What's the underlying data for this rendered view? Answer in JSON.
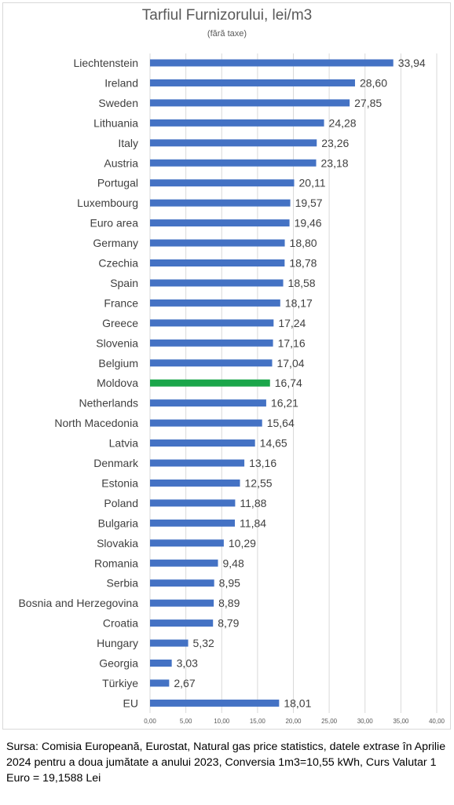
{
  "chart_data": {
    "type": "bar",
    "orientation": "horizontal",
    "title": "Tarfiul Furnizorului, lei/m3",
    "subtitle": "(fără taxe)",
    "categories": [
      "Liechtenstein",
      "Ireland",
      "Sweden",
      "Lithuania",
      "Italy",
      "Austria",
      "Portugal",
      "Luxembourg",
      "Euro area",
      "Germany",
      "Czechia",
      "Spain",
      "France",
      "Greece",
      "Slovenia",
      "Belgium",
      "Moldova",
      "Netherlands",
      "North Macedonia",
      "Latvia",
      "Denmark",
      "Estonia",
      "Poland",
      "Bulgaria",
      "Slovakia",
      "Romania",
      "Serbia",
      "Bosnia and Herzegovina",
      "Croatia",
      "Hungary",
      "Georgia",
      "Türkiye",
      "EU"
    ],
    "values": [
      33.94,
      28.6,
      27.85,
      24.28,
      23.26,
      23.18,
      20.11,
      19.57,
      19.46,
      18.8,
      18.78,
      18.58,
      18.17,
      17.24,
      17.16,
      17.04,
      16.74,
      16.21,
      15.64,
      14.65,
      13.16,
      12.55,
      11.88,
      11.84,
      10.29,
      9.48,
      8.95,
      8.89,
      8.79,
      5.32,
      3.03,
      2.67,
      18.01
    ],
    "value_labels": [
      "33,94",
      "28,60",
      "27,85",
      "24,28",
      "23,26",
      "23,18",
      "20,11",
      "19,57",
      "19,46",
      "18,80",
      "18,78",
      "18,58",
      "18,17",
      "17,24",
      "17,16",
      "17,04",
      "16,74",
      "16,21",
      "15,64",
      "14,65",
      "13,16",
      "12,55",
      "11,88",
      "11,84",
      "10,29",
      "9,48",
      "8,95",
      "8,89",
      "8,79",
      "5,32",
      "3,03",
      "2,67",
      "18,01"
    ],
    "highlight_category": "Moldova",
    "xlim": [
      0,
      40
    ],
    "x_ticks": [
      "0,00",
      "5,00",
      "10,00",
      "15,00",
      "20,00",
      "25,00",
      "30,00",
      "35,00",
      "40,00"
    ],
    "grid": true,
    "colors": {
      "bar": "#4472c4",
      "highlight": "#1aa64a",
      "grid": "#d9d9d9"
    }
  },
  "source_note": "Sursa: Comisia Europeană, Eurostat, Natural gas price statistics, datele extrase în Aprilie 2024 pentru a doua jumătate a anului 2023, Conversia 1m3=10,55 kWh, Curs Valutar 1 Euro = 19,1588 Lei"
}
